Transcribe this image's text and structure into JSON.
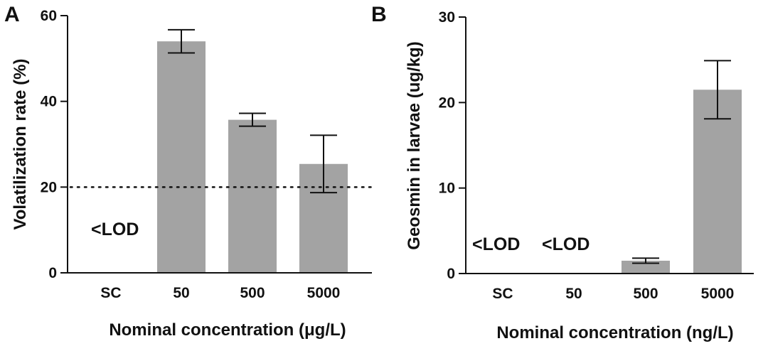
{
  "colors": {
    "bar": "#a3a3a3",
    "axis": "#111111",
    "text": "#111111"
  },
  "chart_data": [
    {
      "type": "bar",
      "panel": "A",
      "categories": [
        "SC",
        "50",
        "500",
        "5000"
      ],
      "values": [
        null,
        54,
        35.7,
        25.4
      ],
      "errors": [
        null,
        2.7,
        1.5,
        6.7
      ],
      "xlabel": "Nominal concentration (μg/L)",
      "ylabel": "Volatilization rate (%)",
      "ylim": [
        0,
        60
      ],
      "yticks": [
        "0",
        "20",
        "40",
        "60"
      ],
      "reference_line": {
        "value": 20,
        "style": "dotted"
      },
      "annotations": [
        {
          "category": "SC",
          "text": "<LOD"
        }
      ]
    },
    {
      "type": "bar",
      "panel": "B",
      "categories": [
        "SC",
        "50",
        "500",
        "5000"
      ],
      "values": [
        null,
        null,
        1.5,
        21.5
      ],
      "errors": [
        null,
        null,
        0.3,
        3.4
      ],
      "xlabel": "Nominal concentration (ng/L)",
      "ylabel": "Geosmin in larvae (ug/kg)",
      "ylim": [
        0,
        30
      ],
      "yticks": [
        "0",
        "10",
        "20",
        "30"
      ],
      "annotations": [
        {
          "category": "SC",
          "text": "<LOD"
        },
        {
          "category": "50",
          "text": "<LOD"
        }
      ]
    }
  ]
}
